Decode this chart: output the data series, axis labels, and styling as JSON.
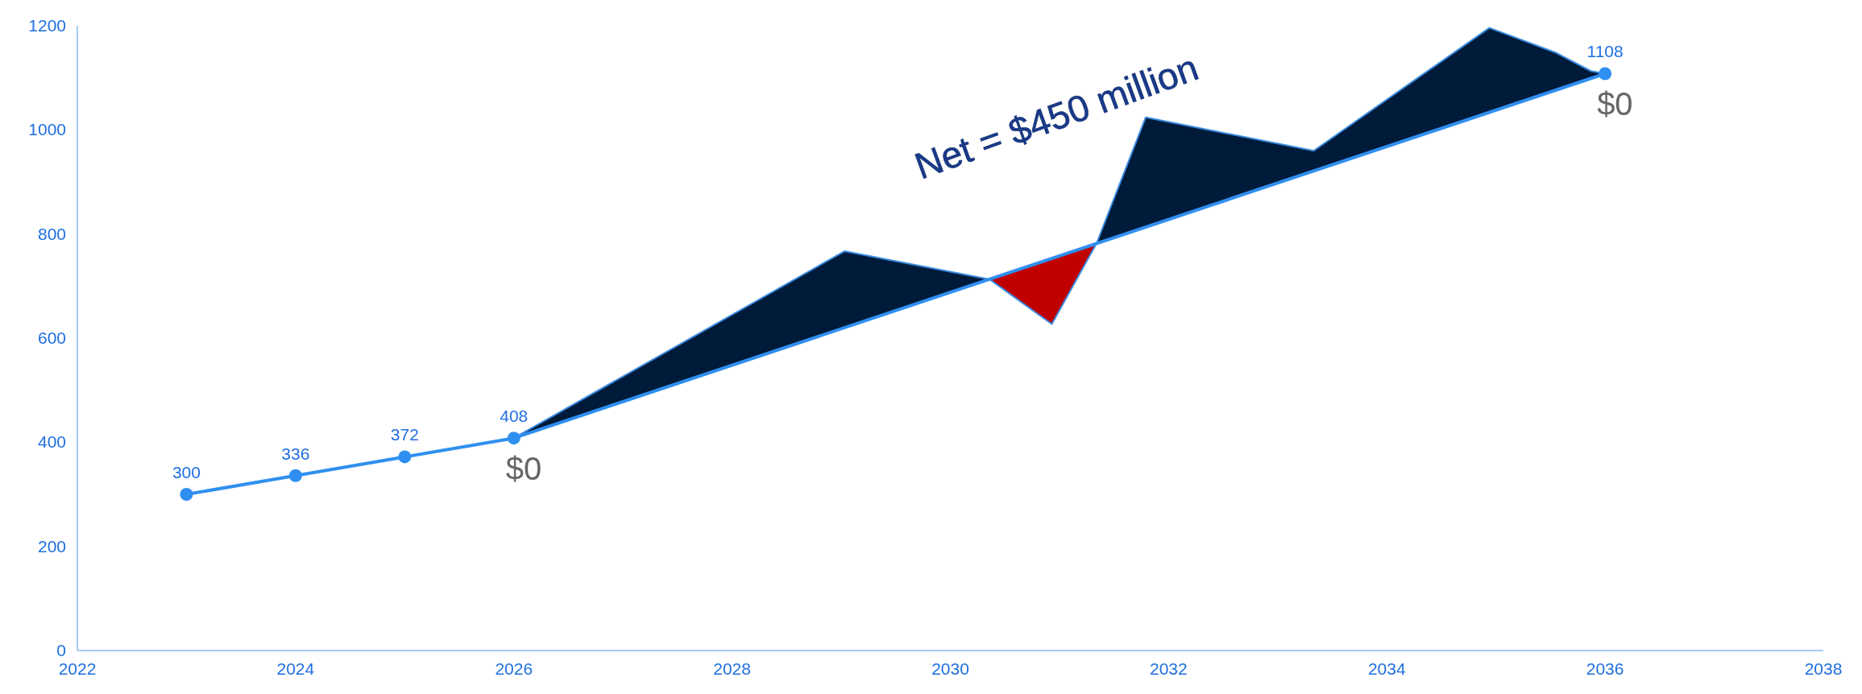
{
  "chart_data": {
    "type": "line",
    "x": [
      2023,
      2024,
      2025,
      2026,
      2036
    ],
    "series": [
      {
        "color": "#2f8ff0",
        "marker": "circle",
        "values": [
          300,
          336,
          372,
          408,
          1108
        ],
        "value_labels": [
          "300",
          "336",
          "372",
          "408",
          "1108"
        ]
      },
      {
        "type": "area",
        "color": "#001a3a",
        "x": [
          2026,
          2029.03,
          2030.36
        ],
        "values": [
          408,
          767,
          713
        ]
      },
      {
        "type": "area",
        "color": "#c00000",
        "x": [
          2030.36,
          2030.93,
          2031.34
        ],
        "values": [
          713,
          627,
          782
        ]
      },
      {
        "type": "area",
        "color": "#001a3a",
        "x": [
          2031.34,
          2031.79,
          2033.33,
          2034.94,
          2035.54,
          2035.87,
          2036
        ],
        "values": [
          782,
          1024,
          960,
          1196,
          1149,
          1113,
          1108
        ]
      }
    ],
    "xlim": [
      2022,
      2038
    ],
    "xticks": [
      2022,
      2024,
      2026,
      2028,
      2030,
      2032,
      2034,
      2036,
      2038
    ],
    "ylim": [
      0,
      1200
    ],
    "yticks": [
      0,
      200,
      400,
      600,
      800,
      1000,
      1200
    ],
    "grid": false,
    "annotations": [
      {
        "text": "$0",
        "x": 2026,
        "y": 408
      },
      {
        "text": "$0",
        "x": 2036,
        "y": 1108
      },
      "Net = $450 million"
    ]
  }
}
